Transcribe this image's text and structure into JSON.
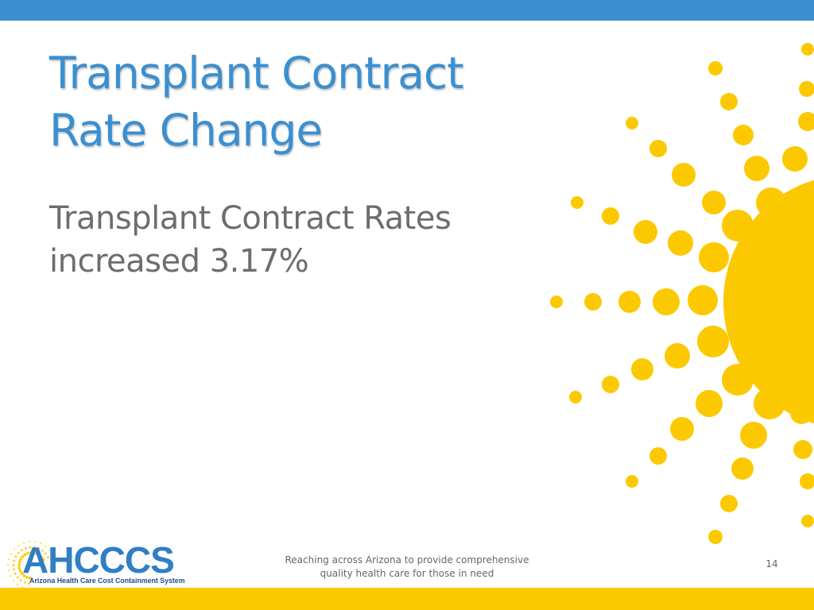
{
  "slide": {
    "title_lines": [
      "Transplant Contract",
      "Rate Change"
    ],
    "body_lines": [
      "Transplant Contract Rates",
      "increased 3.17%"
    ],
    "footer_lines": [
      "Reaching across Arizona to provide comprehensive",
      "quality health care for those in need"
    ],
    "page_number": "14"
  },
  "logo": {
    "wordmark": "AHCCCS",
    "tagline": "Arizona Health Care Cost Containment System"
  },
  "colors": {
    "top_bar": "#3b8fd0",
    "bottom_bar": "#fcc900",
    "title": "#3b8fd0",
    "body_text": "#6d6d6d",
    "sun": "#fcc900",
    "logo_word": "#2f7fc4",
    "logo_tag": "#1f4e85"
  },
  "icons": {
    "sun": "sun-graphic-icon",
    "logo_rays": "sun-rays-logo-icon"
  }
}
